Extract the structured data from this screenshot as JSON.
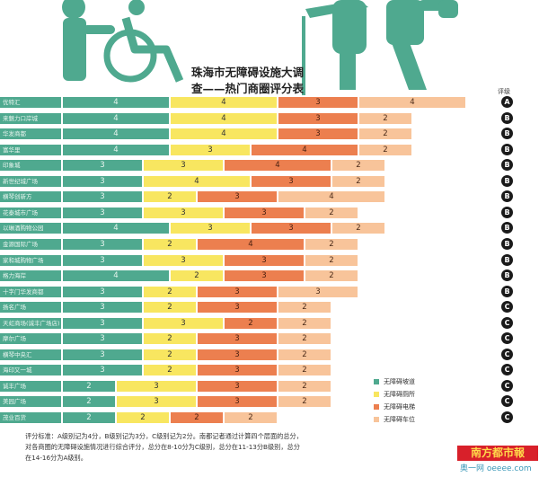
{
  "title_line1": "珠海市无障碍设施大调",
  "title_line2": "查——热门商圈评分表",
  "rating_header": "评级",
  "colors": {
    "ramp": "#4fa98f",
    "toilet": "#f8e660",
    "elevator": "#ec7f4f",
    "parking": "#f8c49a"
  },
  "chart_data": {
    "type": "bar",
    "stacked": true,
    "orientation": "horizontal",
    "title": "珠海市无障碍设施大调查——热门商圈评分表",
    "categories": [
      "优特汇",
      "来魅力口岸城",
      "华发商都",
      "富华里",
      "印象城",
      "新世纪城广场",
      "横琴创新方",
      "花泰城市广场",
      "以琳酒购物公园",
      "金源国际广场",
      "家和城购物广场",
      "格力海岸",
      "十字门华发商都",
      "扬名广场",
      "天虹商场(诚丰广场店)",
      "摩尔广场",
      "横琴中央汇",
      "海印又一城",
      "诚丰广场",
      "美园广场",
      "茂业百货"
    ],
    "series": [
      {
        "name": "无障碍坡道",
        "values": [
          4,
          4,
          4,
          4,
          3,
          3,
          3,
          3,
          4,
          3,
          3,
          4,
          3,
          3,
          3,
          3,
          3,
          3,
          2,
          2,
          2
        ]
      },
      {
        "name": "无障碍厕所",
        "values": [
          4,
          4,
          4,
          3,
          3,
          4,
          2,
          3,
          3,
          2,
          3,
          2,
          2,
          2,
          3,
          2,
          2,
          2,
          3,
          3,
          2
        ]
      },
      {
        "name": "无障碍电梯",
        "values": [
          3,
          3,
          3,
          4,
          4,
          3,
          3,
          3,
          3,
          4,
          3,
          3,
          3,
          3,
          2,
          3,
          3,
          3,
          3,
          3,
          2
        ]
      },
      {
        "name": "无障碍车位",
        "values": [
          4,
          2,
          2,
          2,
          2,
          2,
          4,
          2,
          2,
          2,
          2,
          2,
          3,
          2,
          2,
          2,
          2,
          2,
          2,
          2,
          2
        ]
      }
    ],
    "ratings": [
      "A",
      "B",
      "B",
      "B",
      "B",
      "B",
      "B",
      "B",
      "B",
      "B",
      "B",
      "B",
      "B",
      "C",
      "C",
      "C",
      "C",
      "C",
      "C",
      "C",
      "C"
    ],
    "legend": [
      "无障碍坡道",
      "无障碍厕所",
      "无障碍电梯",
      "无障碍车位"
    ],
    "legend_position": "bottom-right"
  },
  "note": "评分标准：A级别记为4分，B级别记为3分，C级别记为2分。南都记者通过计算四个层面的总分，对各商圈的无障碍设施情况进行综合评分，总分在8-10分为C级别，总分在11-13分B级别，总分在14-16分为A级别。",
  "logo": "南方都市報",
  "site": "奥一网 oeeee.com"
}
